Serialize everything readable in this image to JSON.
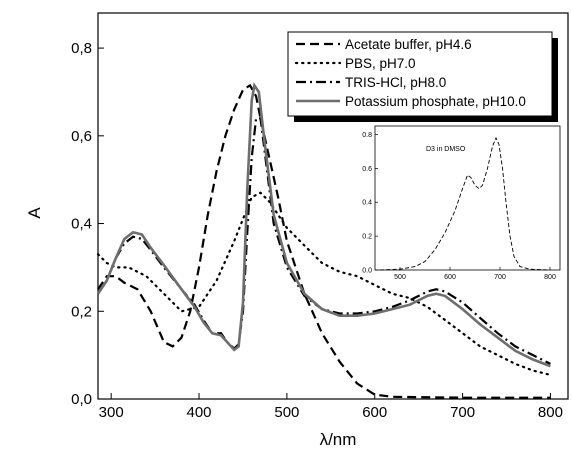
{
  "chart_data": [
    {
      "type": "line",
      "xlabel": "λ/nm",
      "ylabel": "A",
      "xlim": [
        285,
        820
      ],
      "ylim": [
        0.0,
        0.88
      ],
      "xticks": [
        300,
        400,
        500,
        600,
        700,
        800
      ],
      "yticks": [
        0.0,
        0.2,
        0.4,
        0.6,
        0.8
      ],
      "yticklabels": [
        "0,0",
        "0,2",
        "0,4",
        "0,6",
        "0,8"
      ],
      "legend_position": "top-right",
      "series": [
        {
          "name": "Acetate buffer, pH4.6",
          "style": "dashed",
          "color": "#000000",
          "points": [
            [
              285,
              0.25
            ],
            [
              295,
              0.28
            ],
            [
              305,
              0.28
            ],
            [
              315,
              0.265
            ],
            [
              330,
              0.25
            ],
            [
              345,
              0.2
            ],
            [
              360,
              0.13
            ],
            [
              370,
              0.12
            ],
            [
              380,
              0.14
            ],
            [
              390,
              0.2
            ],
            [
              400,
              0.3
            ],
            [
              410,
              0.42
            ],
            [
              420,
              0.52
            ],
            [
              430,
              0.6
            ],
            [
              440,
              0.66
            ],
            [
              450,
              0.705
            ],
            [
              458,
              0.715
            ],
            [
              465,
              0.69
            ],
            [
              470,
              0.64
            ],
            [
              480,
              0.55
            ],
            [
              490,
              0.46
            ],
            [
              500,
              0.36
            ],
            [
              520,
              0.24
            ],
            [
              540,
              0.15
            ],
            [
              560,
              0.085
            ],
            [
              580,
              0.035
            ],
            [
              600,
              0.01
            ],
            [
              620,
              0.005
            ],
            [
              700,
              0.003
            ],
            [
              800,
              0.003
            ]
          ]
        },
        {
          "name": "PBS, pH7.0",
          "style": "dotted",
          "color": "#000000",
          "points": [
            [
              285,
              0.33
            ],
            [
              295,
              0.31
            ],
            [
              305,
              0.3
            ],
            [
              320,
              0.3
            ],
            [
              340,
              0.28
            ],
            [
              360,
              0.24
            ],
            [
              380,
              0.2
            ],
            [
              400,
              0.21
            ],
            [
              420,
              0.27
            ],
            [
              440,
              0.36
            ],
            [
              460,
              0.46
            ],
            [
              470,
              0.47
            ],
            [
              480,
              0.45
            ],
            [
              500,
              0.39
            ],
            [
              520,
              0.35
            ],
            [
              540,
              0.31
            ],
            [
              560,
              0.29
            ],
            [
              580,
              0.28
            ],
            [
              600,
              0.26
            ],
            [
              620,
              0.24
            ],
            [
              640,
              0.23
            ],
            [
              660,
              0.21
            ],
            [
              680,
              0.18
            ],
            [
              700,
              0.15
            ],
            [
              720,
              0.12
            ],
            [
              740,
              0.1
            ],
            [
              760,
              0.08
            ],
            [
              780,
              0.065
            ],
            [
              800,
              0.055
            ]
          ]
        },
        {
          "name": "TRIS-HCl, pH8.0",
          "style": "dashdot",
          "color": "#000000",
          "points": [
            [
              285,
              0.24
            ],
            [
              295,
              0.27
            ],
            [
              305,
              0.32
            ],
            [
              315,
              0.355
            ],
            [
              325,
              0.37
            ],
            [
              335,
              0.365
            ],
            [
              345,
              0.34
            ],
            [
              360,
              0.3
            ],
            [
              380,
              0.25
            ],
            [
              395,
              0.215
            ],
            [
              405,
              0.18
            ],
            [
              415,
              0.15
            ],
            [
              425,
              0.15
            ],
            [
              432,
              0.13
            ],
            [
              440,
              0.115
            ],
            [
              445,
              0.125
            ],
            [
              450,
              0.2
            ],
            [
              455,
              0.38
            ],
            [
              460,
              0.55
            ],
            [
              465,
              0.64
            ],
            [
              470,
              0.64
            ],
            [
              475,
              0.56
            ],
            [
              485,
              0.4
            ],
            [
              500,
              0.3
            ],
            [
              520,
              0.235
            ],
            [
              540,
              0.205
            ],
            [
              560,
              0.195
            ],
            [
              580,
              0.195
            ],
            [
              600,
              0.2
            ],
            [
              620,
              0.21
            ],
            [
              640,
              0.225
            ],
            [
              660,
              0.245
            ],
            [
              670,
              0.25
            ],
            [
              680,
              0.245
            ],
            [
              700,
              0.22
            ],
            [
              720,
              0.185
            ],
            [
              740,
              0.15
            ],
            [
              760,
              0.12
            ],
            [
              780,
              0.1
            ],
            [
              800,
              0.08
            ]
          ]
        },
        {
          "name": "Potassium phosphate, pH10.0",
          "style": "solid",
          "color": "#6e6e6e",
          "points": [
            [
              285,
              0.24
            ],
            [
              295,
              0.27
            ],
            [
              305,
              0.32
            ],
            [
              315,
              0.365
            ],
            [
              325,
              0.38
            ],
            [
              335,
              0.375
            ],
            [
              345,
              0.345
            ],
            [
              360,
              0.305
            ],
            [
              380,
              0.25
            ],
            [
              395,
              0.21
            ],
            [
              405,
              0.175
            ],
            [
              415,
              0.15
            ],
            [
              425,
              0.145
            ],
            [
              432,
              0.13
            ],
            [
              440,
              0.112
            ],
            [
              445,
              0.12
            ],
            [
              450,
              0.22
            ],
            [
              455,
              0.48
            ],
            [
              460,
              0.68
            ],
            [
              463,
              0.715
            ],
            [
              468,
              0.7
            ],
            [
              475,
              0.58
            ],
            [
              485,
              0.42
            ],
            [
              500,
              0.31
            ],
            [
              520,
              0.24
            ],
            [
              540,
              0.205
            ],
            [
              560,
              0.19
            ],
            [
              580,
              0.19
            ],
            [
              600,
              0.195
            ],
            [
              620,
              0.205
            ],
            [
              640,
              0.215
            ],
            [
              660,
              0.235
            ],
            [
              670,
              0.24
            ],
            [
              680,
              0.235
            ],
            [
              700,
              0.205
            ],
            [
              720,
              0.17
            ],
            [
              740,
              0.14
            ],
            [
              760,
              0.11
            ],
            [
              780,
              0.09
            ],
            [
              800,
              0.075
            ]
          ]
        }
      ]
    },
    {
      "type": "line",
      "title": "D3 in DMSO",
      "xlim": [
        450,
        820
      ],
      "ylim": [
        0.0,
        0.85
      ],
      "xticks": [
        500,
        600,
        700,
        800
      ],
      "yticks": [
        0.0,
        0.2,
        0.4,
        0.6,
        0.8
      ],
      "yticklabels": [
        "0.0",
        "0.2",
        "0.4",
        "0.6",
        "0.8"
      ],
      "series": [
        {
          "style": "dashed",
          "color": "#000000",
          "points": [
            [
              460,
              0.0
            ],
            [
              500,
              0.005
            ],
            [
              530,
              0.02
            ],
            [
              550,
              0.05
            ],
            [
              570,
              0.12
            ],
            [
              590,
              0.22
            ],
            [
              610,
              0.35
            ],
            [
              625,
              0.48
            ],
            [
              635,
              0.56
            ],
            [
              642,
              0.545
            ],
            [
              650,
              0.5
            ],
            [
              658,
              0.48
            ],
            [
              665,
              0.5
            ],
            [
              675,
              0.6
            ],
            [
              685,
              0.73
            ],
            [
              692,
              0.78
            ],
            [
              698,
              0.74
            ],
            [
              705,
              0.6
            ],
            [
              712,
              0.4
            ],
            [
              720,
              0.2
            ],
            [
              728,
              0.08
            ],
            [
              740,
              0.02
            ],
            [
              760,
              0.005
            ],
            [
              800,
              0.0
            ]
          ]
        }
      ]
    }
  ]
}
